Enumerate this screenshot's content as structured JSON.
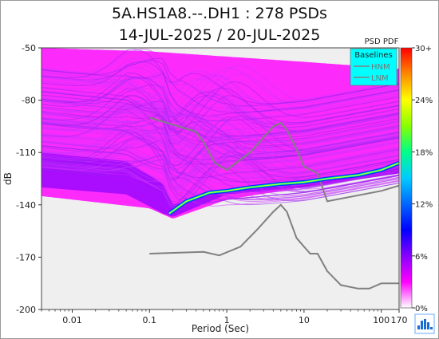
{
  "chart_data": {
    "type": "heatmap",
    "title": "5A.HS1A8.--.DH1 : 278 PSDs",
    "subtitle": "14-JUL-2025 / 20-JUL-2025",
    "xlabel": "Period (Sec)",
    "ylabel": "dB",
    "x_scale": "log",
    "xlim": [
      0.004,
      170
    ],
    "ylim": [
      -200,
      -50
    ],
    "x_ticks": [
      "0.01",
      "0.1",
      "1",
      "10",
      "100",
      "170"
    ],
    "x_tick_values": [
      0.01,
      0.1,
      1,
      10,
      100,
      170
    ],
    "y_ticks": [
      "-50",
      "-80",
      "-110",
      "-140",
      "-170",
      "-200"
    ],
    "y_tick_values": [
      -50,
      -80,
      -110,
      -140,
      -170,
      -200
    ],
    "colorbar": {
      "title": "PSD PDF",
      "ticks": [
        "30+",
        "24%",
        "18%",
        "12%",
        "6%",
        "0%"
      ],
      "colors": [
        "#ff0000",
        "#ff8800",
        "#ffff00",
        "#88ff00",
        "#00ff88",
        "#00ccff",
        "#0066ff",
        "#0000ff",
        "#8800ff",
        "#ff00ff",
        "#ffffff"
      ]
    },
    "legend": {
      "title": "Baselines",
      "placement": "top-right",
      "entries": [
        "HNM",
        "LNM"
      ],
      "background": "#00ffff",
      "line_color": "#808080"
    },
    "series": [
      {
        "name": "HNM",
        "style": "baseline",
        "color": "#808080",
        "points": [
          [
            0.1,
            -90
          ],
          [
            0.2,
            -94
          ],
          [
            0.4,
            -98
          ],
          [
            0.5,
            -104
          ],
          [
            0.7,
            -116
          ],
          [
            1,
            -120
          ],
          [
            2,
            -110
          ],
          [
            4,
            -95
          ],
          [
            5,
            -93
          ],
          [
            6,
            -97
          ],
          [
            8,
            -108
          ],
          [
            10,
            -118
          ],
          [
            15,
            -122
          ],
          [
            20,
            -138
          ],
          [
            100,
            -132
          ],
          [
            170,
            -129
          ]
        ]
      },
      {
        "name": "LNM",
        "style": "baseline",
        "color": "#808080",
        "points": [
          [
            0.1,
            -168
          ],
          [
            0.5,
            -167
          ],
          [
            0.8,
            -169
          ],
          [
            1.5,
            -164
          ],
          [
            2.5,
            -154
          ],
          [
            4,
            -144
          ],
          [
            5,
            -140
          ],
          [
            6,
            -144
          ],
          [
            8,
            -159
          ],
          [
            10,
            -164
          ],
          [
            12,
            -168
          ],
          [
            15,
            -168
          ],
          [
            20,
            -178
          ],
          [
            30,
            -186
          ],
          [
            50,
            -188
          ],
          [
            70,
            -188
          ],
          [
            100,
            -185
          ],
          [
            170,
            -185
          ]
        ]
      },
      {
        "name": "",
        "style": "mode",
        "color": "#00ff88",
        "points": [
          [
            0.18,
            -145
          ],
          [
            0.3,
            -138
          ],
          [
            0.6,
            -133
          ],
          [
            1,
            -132
          ],
          [
            2,
            -130
          ],
          [
            5,
            -128
          ],
          [
            10,
            -127
          ],
          [
            20,
            -125
          ],
          [
            50,
            -123
          ],
          [
            100,
            -120
          ],
          [
            170,
            -116
          ]
        ]
      }
    ],
    "density_regions": [
      {
        "tone": "low",
        "color": "#ff00ff",
        "envelope_top": [
          [
            0.004,
            -50
          ],
          [
            0.1,
            -52
          ],
          [
            1,
            -55
          ],
          [
            10,
            -58
          ],
          [
            170,
            -62
          ]
        ],
        "envelope_bottom": [
          [
            0.004,
            -135
          ],
          [
            0.1,
            -142
          ],
          [
            0.2,
            -148
          ],
          [
            1,
            -137
          ],
          [
            10,
            -130
          ],
          [
            170,
            -122
          ]
        ]
      },
      {
        "tone": "medium",
        "color": "#8800ff",
        "envelope_top": [
          [
            0.004,
            -110
          ],
          [
            0.05,
            -115
          ],
          [
            0.15,
            -128
          ],
          [
            0.2,
            -140
          ],
          [
            1,
            -132
          ],
          [
            10,
            -128
          ],
          [
            170,
            -118
          ]
        ],
        "envelope_bottom": [
          [
            0.004,
            -130
          ],
          [
            0.05,
            -134
          ],
          [
            0.15,
            -145
          ],
          [
            0.2,
            -147
          ],
          [
            1,
            -134
          ],
          [
            10,
            -130
          ],
          [
            170,
            -122
          ]
        ]
      }
    ]
  }
}
